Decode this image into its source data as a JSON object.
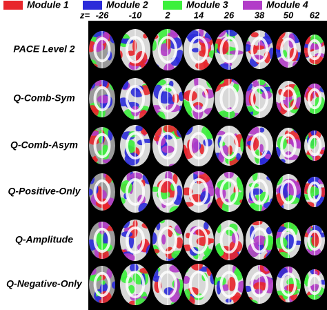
{
  "legend": [
    {
      "label": "Module 1",
      "color": "#e8262b"
    },
    {
      "label": "Module 2",
      "color": "#2b2bd9"
    },
    {
      "label": "Module 3",
      "color": "#3cf03c"
    },
    {
      "label": "Module 4",
      "color": "#b23cc8"
    }
  ],
  "z_label": "z=",
  "z_values": [
    -26,
    -10,
    2,
    14,
    26,
    38,
    50,
    62
  ],
  "rows": [
    "PACE Level 2",
    "Q-Comb-Sym",
    "Q-Comb-Asym",
    "Q-Positive-Only",
    "Q-Amplitude",
    "Q-Negative-Only"
  ]
}
